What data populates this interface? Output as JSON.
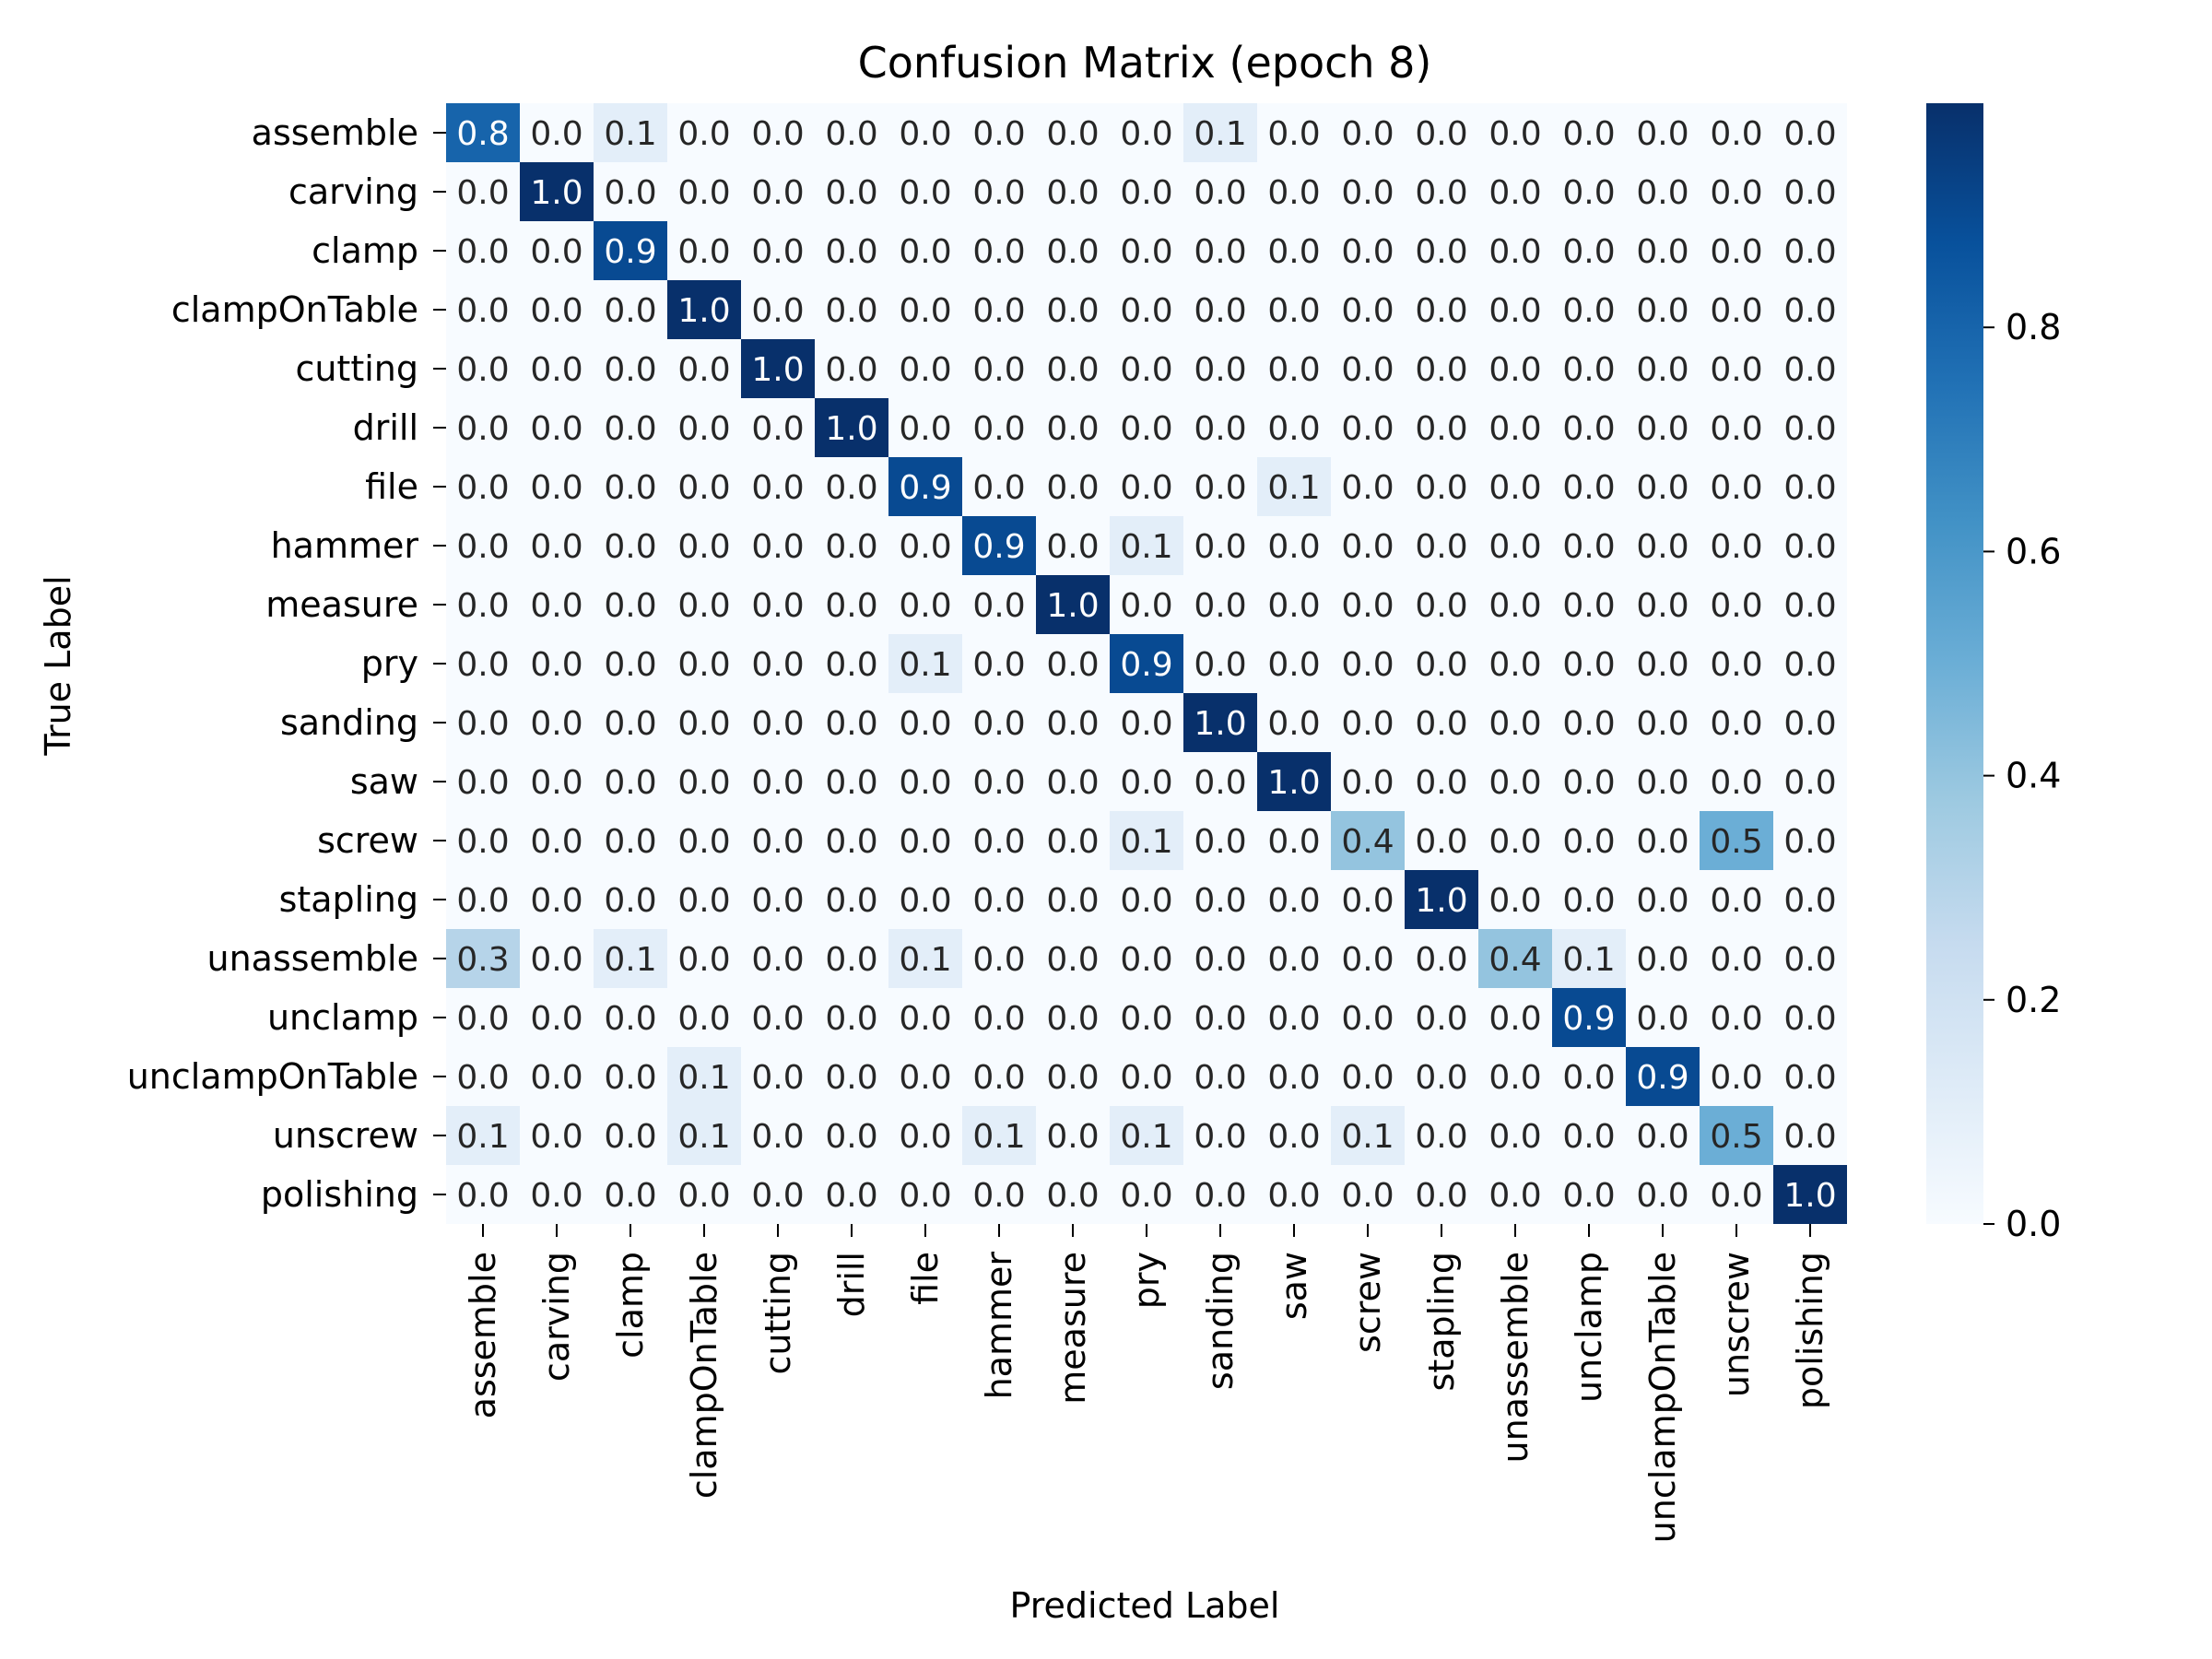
{
  "chart_data": {
    "type": "heatmap",
    "title": "Confusion Matrix (epoch 8)",
    "xlabel": "Predicted Label",
    "ylabel": "True Label",
    "row_labels": [
      "assemble",
      "carving",
      "clamp",
      "clampOnTable",
      "cutting",
      "drill",
      "file",
      "hammer",
      "measure",
      "pry",
      "sanding",
      "saw",
      "screw",
      "stapling",
      "unassemble",
      "unclamp",
      "unclampOnTable",
      "unscrew",
      "polishing"
    ],
    "col_labels": [
      "assemble",
      "carving",
      "clamp",
      "clampOnTable",
      "cutting",
      "drill",
      "file",
      "hammer",
      "measure",
      "pry",
      "sanding",
      "saw",
      "screw",
      "stapling",
      "unassemble",
      "unclamp",
      "unclampOnTable",
      "unscrew",
      "polishing"
    ],
    "values": [
      [
        0.8,
        0.0,
        0.1,
        0.0,
        0.0,
        0.0,
        0.0,
        0.0,
        0.0,
        0.0,
        0.1,
        0.0,
        0.0,
        0.0,
        0.0,
        0.0,
        0.0,
        0.0,
        0.0
      ],
      [
        0.0,
        1.0,
        0.0,
        0.0,
        0.0,
        0.0,
        0.0,
        0.0,
        0.0,
        0.0,
        0.0,
        0.0,
        0.0,
        0.0,
        0.0,
        0.0,
        0.0,
        0.0,
        0.0
      ],
      [
        0.0,
        0.0,
        0.9,
        0.0,
        0.0,
        0.0,
        0.0,
        0.0,
        0.0,
        0.0,
        0.0,
        0.0,
        0.0,
        0.0,
        0.0,
        0.0,
        0.0,
        0.0,
        0.0
      ],
      [
        0.0,
        0.0,
        0.0,
        1.0,
        0.0,
        0.0,
        0.0,
        0.0,
        0.0,
        0.0,
        0.0,
        0.0,
        0.0,
        0.0,
        0.0,
        0.0,
        0.0,
        0.0,
        0.0
      ],
      [
        0.0,
        0.0,
        0.0,
        0.0,
        1.0,
        0.0,
        0.0,
        0.0,
        0.0,
        0.0,
        0.0,
        0.0,
        0.0,
        0.0,
        0.0,
        0.0,
        0.0,
        0.0,
        0.0
      ],
      [
        0.0,
        0.0,
        0.0,
        0.0,
        0.0,
        1.0,
        0.0,
        0.0,
        0.0,
        0.0,
        0.0,
        0.0,
        0.0,
        0.0,
        0.0,
        0.0,
        0.0,
        0.0,
        0.0
      ],
      [
        0.0,
        0.0,
        0.0,
        0.0,
        0.0,
        0.0,
        0.9,
        0.0,
        0.0,
        0.0,
        0.0,
        0.1,
        0.0,
        0.0,
        0.0,
        0.0,
        0.0,
        0.0,
        0.0
      ],
      [
        0.0,
        0.0,
        0.0,
        0.0,
        0.0,
        0.0,
        0.0,
        0.9,
        0.0,
        0.1,
        0.0,
        0.0,
        0.0,
        0.0,
        0.0,
        0.0,
        0.0,
        0.0,
        0.0
      ],
      [
        0.0,
        0.0,
        0.0,
        0.0,
        0.0,
        0.0,
        0.0,
        0.0,
        1.0,
        0.0,
        0.0,
        0.0,
        0.0,
        0.0,
        0.0,
        0.0,
        0.0,
        0.0,
        0.0
      ],
      [
        0.0,
        0.0,
        0.0,
        0.0,
        0.0,
        0.0,
        0.1,
        0.0,
        0.0,
        0.9,
        0.0,
        0.0,
        0.0,
        0.0,
        0.0,
        0.0,
        0.0,
        0.0,
        0.0
      ],
      [
        0.0,
        0.0,
        0.0,
        0.0,
        0.0,
        0.0,
        0.0,
        0.0,
        0.0,
        0.0,
        1.0,
        0.0,
        0.0,
        0.0,
        0.0,
        0.0,
        0.0,
        0.0,
        0.0
      ],
      [
        0.0,
        0.0,
        0.0,
        0.0,
        0.0,
        0.0,
        0.0,
        0.0,
        0.0,
        0.0,
        0.0,
        1.0,
        0.0,
        0.0,
        0.0,
        0.0,
        0.0,
        0.0,
        0.0
      ],
      [
        0.0,
        0.0,
        0.0,
        0.0,
        0.0,
        0.0,
        0.0,
        0.0,
        0.0,
        0.1,
        0.0,
        0.0,
        0.4,
        0.0,
        0.0,
        0.0,
        0.0,
        0.5,
        0.0
      ],
      [
        0.0,
        0.0,
        0.0,
        0.0,
        0.0,
        0.0,
        0.0,
        0.0,
        0.0,
        0.0,
        0.0,
        0.0,
        0.0,
        1.0,
        0.0,
        0.0,
        0.0,
        0.0,
        0.0
      ],
      [
        0.3,
        0.0,
        0.1,
        0.0,
        0.0,
        0.0,
        0.1,
        0.0,
        0.0,
        0.0,
        0.0,
        0.0,
        0.0,
        0.0,
        0.4,
        0.1,
        0.0,
        0.0,
        0.0
      ],
      [
        0.0,
        0.0,
        0.0,
        0.0,
        0.0,
        0.0,
        0.0,
        0.0,
        0.0,
        0.0,
        0.0,
        0.0,
        0.0,
        0.0,
        0.0,
        0.9,
        0.0,
        0.0,
        0.0
      ],
      [
        0.0,
        0.0,
        0.0,
        0.1,
        0.0,
        0.0,
        0.0,
        0.0,
        0.0,
        0.0,
        0.0,
        0.0,
        0.0,
        0.0,
        0.0,
        0.0,
        0.9,
        0.0,
        0.0
      ],
      [
        0.1,
        0.0,
        0.0,
        0.1,
        0.0,
        0.0,
        0.0,
        0.1,
        0.0,
        0.1,
        0.0,
        0.0,
        0.1,
        0.0,
        0.0,
        0.0,
        0.0,
        0.5,
        0.0
      ],
      [
        0.0,
        0.0,
        0.0,
        0.0,
        0.0,
        0.0,
        0.0,
        0.0,
        0.0,
        0.0,
        0.0,
        0.0,
        0.0,
        0.0,
        0.0,
        0.0,
        0.0,
        0.0,
        1.0
      ]
    ],
    "colorbar": {
      "ticks": [
        "0.0",
        "0.2",
        "0.4",
        "0.6",
        "0.8"
      ],
      "range": [
        0,
        1.0
      ]
    },
    "colormap": "Blues",
    "colors": {
      "low": "#f7fbff",
      "mid": "#6baed6",
      "high": "#08306b"
    },
    "grid": false,
    "legend": "colorbar-right"
  }
}
